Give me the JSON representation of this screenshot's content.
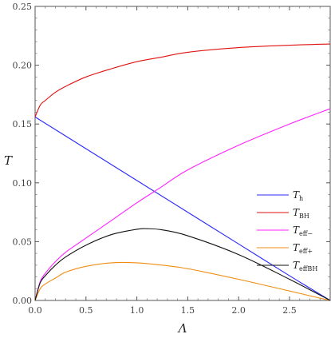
{
  "chart_data": {
    "type": "line",
    "xlabel": "Λ",
    "ylabel": "T",
    "xlim": [
      0,
      2.9
    ],
    "ylim": [
      0,
      0.25
    ],
    "x_ticks": [
      "0.0",
      "0.5",
      "1.0",
      "1.5",
      "2.0",
      "2.5"
    ],
    "y_ticks": [
      "0.00",
      "0.05",
      "0.10",
      "0.15",
      "0.20",
      "0.25"
    ],
    "grid": false,
    "legend_position": "right",
    "series": [
      {
        "name": "T_h",
        "label_main": "T",
        "label_sub": "h",
        "color": "#2a2aff",
        "x": [
          0,
          0.5,
          1.0,
          1.5,
          2.0,
          2.5,
          2.9
        ],
        "y": [
          0.156,
          0.129,
          0.102,
          0.075,
          0.048,
          0.021,
          0.0
        ]
      },
      {
        "name": "T_BH",
        "label_main": "T",
        "label_sub": "BH",
        "color": "#e01010",
        "x": [
          0,
          0.05,
          0.1,
          0.2,
          0.3,
          0.5,
          0.75,
          1.0,
          1.25,
          1.5,
          2.0,
          2.5,
          2.9
        ],
        "y": [
          0.156,
          0.166,
          0.17,
          0.177,
          0.182,
          0.19,
          0.197,
          0.203,
          0.207,
          0.211,
          0.215,
          0.217,
          0.218
        ]
      },
      {
        "name": "T_eff-",
        "label_main": "T",
        "label_sub": "eff−",
        "color": "#ff22ff",
        "x": [
          0,
          0.05,
          0.1,
          0.2,
          0.3,
          0.5,
          0.75,
          1.0,
          1.25,
          1.5,
          2.0,
          2.5,
          2.9
        ],
        "y": [
          0,
          0.016,
          0.023,
          0.033,
          0.041,
          0.053,
          0.068,
          0.083,
          0.097,
          0.111,
          0.132,
          0.15,
          0.163
        ]
      },
      {
        "name": "T_eff+",
        "label_main": "T",
        "label_sub": "eff+",
        "color": "#f08c10",
        "x": [
          0,
          0.05,
          0.1,
          0.2,
          0.3,
          0.5,
          0.75,
          1.0,
          1.25,
          1.5,
          2.0,
          2.5,
          2.9
        ],
        "y": [
          0,
          0.01,
          0.014,
          0.019,
          0.024,
          0.029,
          0.032,
          0.032,
          0.03,
          0.027,
          0.018,
          0.008,
          0.0
        ]
      },
      {
        "name": "T_effBH",
        "label_main": "T",
        "label_sub": "effBH",
        "color": "#111111",
        "x": [
          0,
          0.05,
          0.1,
          0.2,
          0.3,
          0.5,
          0.75,
          1.0,
          1.1,
          1.25,
          1.5,
          2.0,
          2.5,
          2.9
        ],
        "y": [
          0,
          0.015,
          0.021,
          0.03,
          0.037,
          0.047,
          0.056,
          0.0605,
          0.061,
          0.06,
          0.055,
          0.039,
          0.018,
          0.0
        ]
      }
    ]
  }
}
